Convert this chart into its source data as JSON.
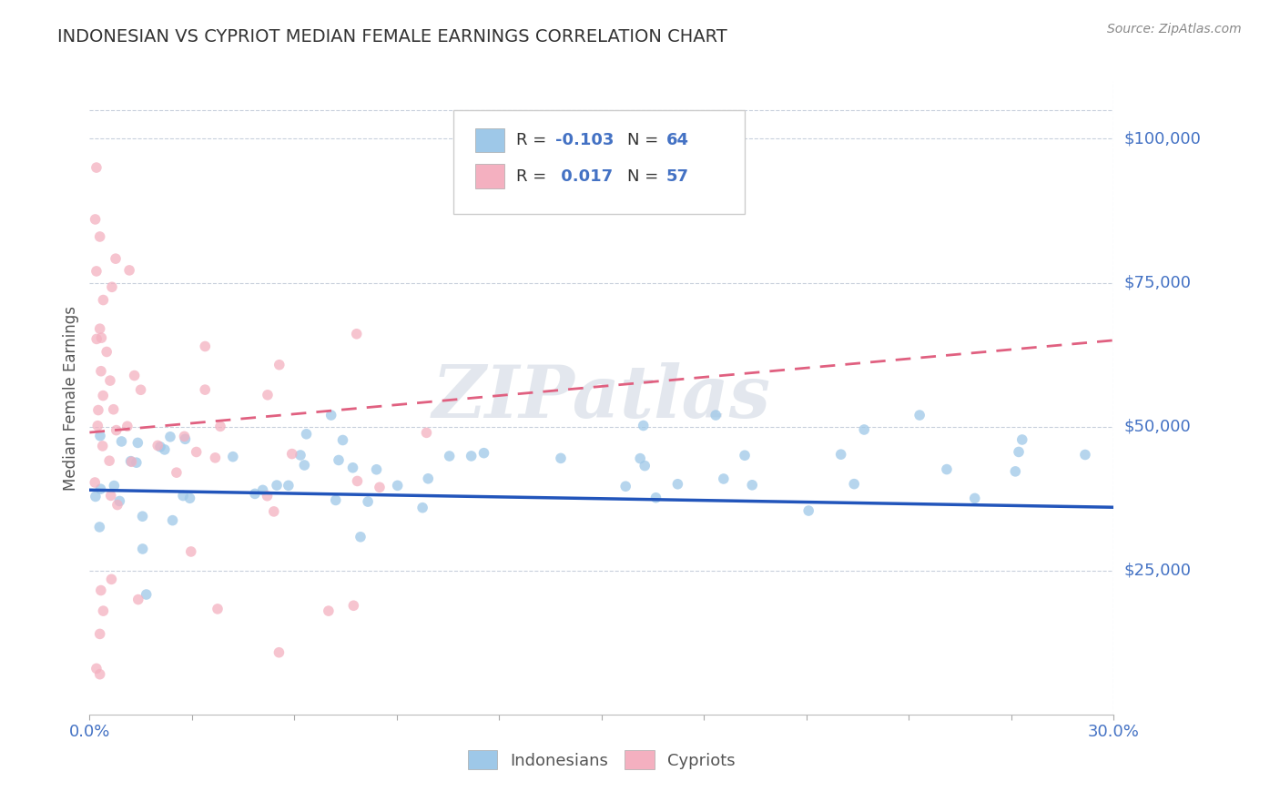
{
  "title": "INDONESIAN VS CYPRIOT MEDIAN FEMALE EARNINGS CORRELATION CHART",
  "source_text": "Source: ZipAtlas.com",
  "ylabel": "Median Female Earnings",
  "xlim": [
    0.0,
    0.3
  ],
  "ylim": [
    0,
    110000
  ],
  "ytick_values": [
    25000,
    50000,
    75000,
    100000
  ],
  "ytick_labels": [
    "$25,000",
    "$50,000",
    "$75,000",
    "$100,000"
  ],
  "grid_color": "#c8d0dc",
  "background_color": "#ffffff",
  "indonesian_color": "#9ec8e8",
  "cypriot_color": "#f4b0c0",
  "indonesian_line_color": "#2255bb",
  "cypriot_line_color": "#e06080",
  "watermark": "ZIPatlas",
  "title_color": "#333333",
  "axis_color": "#4472c4",
  "indonesians_label": "Indonesians",
  "cypriots_label": "Cypriots",
  "indonesian_R": -0.103,
  "cypriot_R": 0.017
}
